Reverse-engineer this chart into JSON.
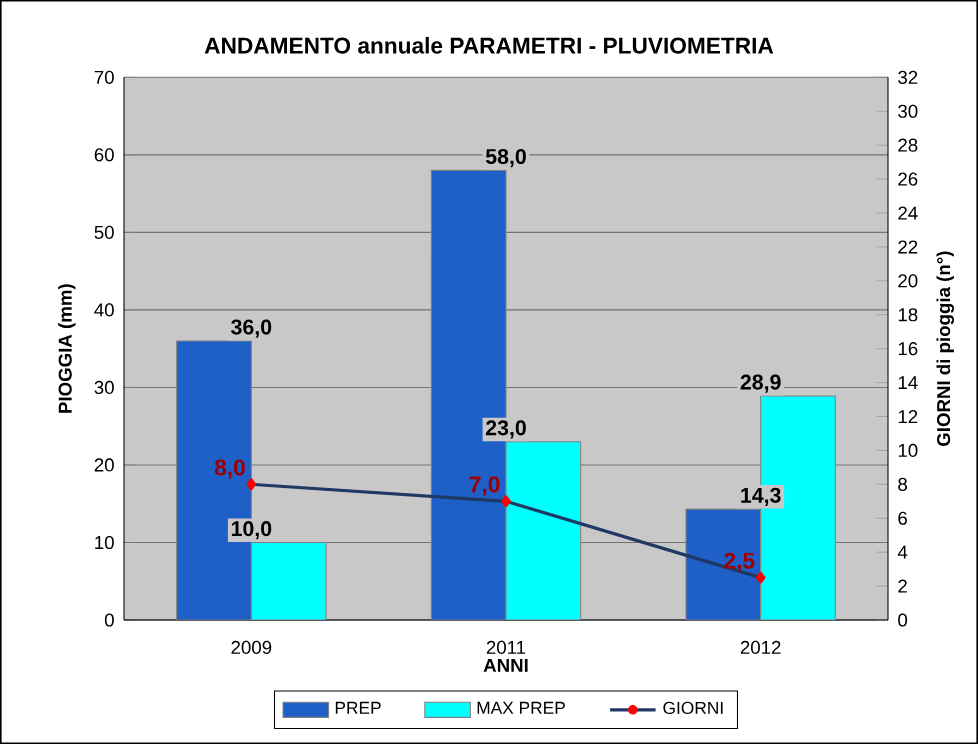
{
  "chart_data": {
    "type": "bar",
    "title": "ANDAMENTO annuale PARAMETRI - PLUVIOMETRIA",
    "xlabel": "ANNI",
    "ylabel": "PIOGGIA    (mm)",
    "y2label": "GIORNI di pioggia  (n°)",
    "categories": [
      "2009",
      "2011",
      "2012"
    ],
    "series": [
      {
        "name": "PREP",
        "color": "#1f5fc8",
        "values": [
          36.0,
          58.0,
          14.3
        ],
        "value_labels": [
          "36,0",
          "58,0",
          "14,3"
        ]
      },
      {
        "name": "MAX PREP",
        "color": "#00ffff",
        "values": [
          10.0,
          23.0,
          28.9
        ],
        "value_labels": [
          "10,0",
          "23,0",
          "28,9"
        ]
      },
      {
        "name": "GIORNI",
        "type": "line",
        "axis": "y2",
        "color": "#1f3864",
        "marker": "diamond",
        "values": [
          8.0,
          7.0,
          2.5
        ],
        "value_labels": [
          "8,0",
          "7,0",
          "2,5"
        ]
      }
    ],
    "ylim": [
      0,
      70
    ],
    "yticks": [
      0,
      10,
      20,
      30,
      40,
      50,
      60,
      70
    ],
    "y2lim": [
      0,
      32
    ],
    "y2ticks": [
      0,
      2,
      4,
      6,
      8,
      10,
      12,
      14,
      16,
      18,
      20,
      22,
      24,
      26,
      28,
      30,
      32
    ],
    "grid": "y",
    "legend": "bottom"
  }
}
